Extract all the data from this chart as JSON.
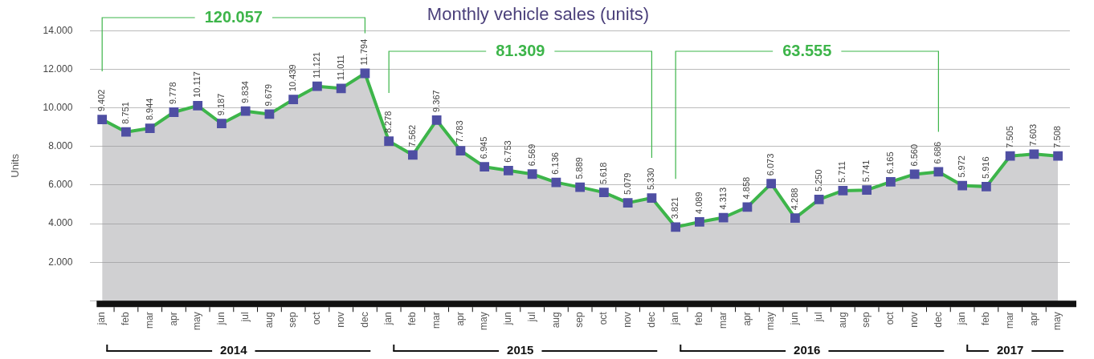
{
  "chart_data": {
    "type": "area",
    "title": "Monthly vehicle sales (units)",
    "ylabel": "Units",
    "categories": [
      "jan",
      "feb",
      "mar",
      "apr",
      "may",
      "jun",
      "jul",
      "aug",
      "sep",
      "oct",
      "nov",
      "dec",
      "jan",
      "feb",
      "mar",
      "apr",
      "may",
      "jun",
      "jul",
      "aug",
      "sep",
      "oct",
      "nov",
      "dec",
      "jan",
      "feb",
      "mar",
      "apr",
      "may",
      "jun",
      "jul",
      "aug",
      "sep",
      "oct",
      "nov",
      "dec",
      "jan",
      "feb",
      "mar",
      "apr",
      "may"
    ],
    "series": [
      {
        "color": "#3db54a",
        "colors": [
          "#4f4fa3",
          "#4f4fa3",
          "#4f4fa3",
          "#4f4fa3",
          "#4f4fa3",
          "#4f4fa3",
          "#4f4fa3",
          "#4f4fa3",
          "#4f4fa3",
          "#4f4fa3",
          "#4f4fa3",
          "#4f4fa3",
          "#4f4fa3",
          "#4f4fa3",
          "#4f4fa3",
          "#4f4fa3",
          "#4f4fa3",
          "#4f4fa3",
          "#4f4fa3",
          "#4f4fa3",
          "#4f4fa3",
          "#4f4fa3",
          "#4f4fa3",
          "#4f4fa3",
          "#4f4fa3",
          "#4f4fa3",
          "#4f4fa3",
          "#4f4fa3",
          "#4f4fa3",
          "#4f4fa3",
          "#4f4fa3",
          "#4f4fa3",
          "#4f4fa3",
          "#4f4fa3",
          "#4f4fa3",
          "#4f4fa3",
          "#4f4fa3",
          "#4f4fa3",
          "#4f4fa3",
          "#4f4fa3",
          "#4f4fa3"
        ],
        "values": [
          9402,
          8751,
          8944,
          9778,
          10117,
          9187,
          9834,
          9679,
          10439,
          11121,
          11011,
          11794,
          8278,
          7562,
          9367,
          7783,
          6945,
          6753,
          6569,
          6136,
          5889,
          5618,
          5079,
          5330,
          3821,
          4089,
          4313,
          4858,
          6073,
          4288,
          5250,
          5711,
          5741,
          6165,
          6560,
          6686,
          5972,
          5916,
          7505,
          7603,
          7508
        ],
        "value_labels": [
          "9.402",
          "8.751",
          "8.944",
          "9.778",
          "10.117",
          "9.187",
          "9.834",
          "9.679",
          "10.439",
          "11.121",
          "11.011",
          "11.794",
          "8.278",
          "7.562",
          "9.367",
          "7.783",
          "6.945",
          "6.753",
          "6.569",
          "6.136",
          "5.889",
          "5.618",
          "5.079",
          "5.330",
          "3.821",
          "4.089",
          "4.313",
          "4.858",
          "6.073",
          "4.288",
          "5.250",
          "5.711",
          "5.741",
          "6.165",
          "6.560",
          "6.686",
          "5.972",
          "5.916",
          "7.505",
          "7.603",
          "7.508"
        ]
      }
    ],
    "ylim": [
      0,
      14000
    ],
    "yticks": [
      {
        "value": 0,
        "label": null
      },
      {
        "value": 2000,
        "label": "2.000"
      },
      {
        "value": 4000,
        "label": "4.000"
      },
      {
        "value": 6000,
        "label": "6.000"
      },
      {
        "value": 8000,
        "label": "8.000"
      },
      {
        "value": 10000,
        "label": "10.000"
      },
      {
        "value": 12000,
        "label": "12.000"
      },
      {
        "value": 14000,
        "label": "14.000"
      }
    ],
    "grid": "y",
    "marker": "square",
    "line_style": "solid",
    "legend": false,
    "annotations": [
      "120.057",
      "81.309",
      "63.555",
      "2014",
      "2015",
      "2016",
      "2017"
    ]
  }
}
